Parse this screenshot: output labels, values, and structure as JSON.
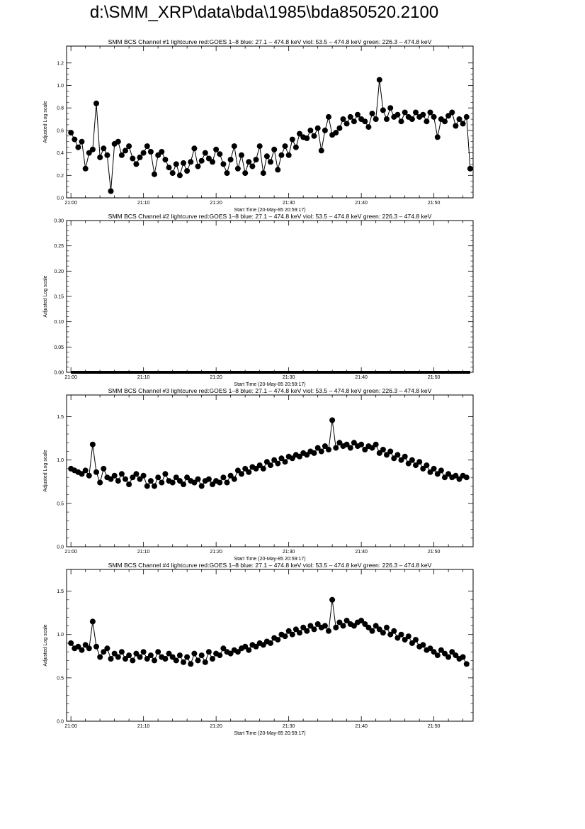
{
  "page": {
    "title": "d:\\SMM_XRP\\data\\bda\\1985\\bda850520.2100"
  },
  "chart_data": [
    {
      "type": "line",
      "title": "SMM BCS Channel #1 lightcurve  red:GOES 1–8  blue: 27.1 – 474.8 keV  viol: 53.5 – 474.8 keV  green: 226.3 – 474.8 keV",
      "xlabel": "Start Time (20-May-85 20:59:17)",
      "ylabel": "Adjusted Log scale",
      "xticks": [
        "21:00",
        "21:10",
        "21:20",
        "21:30",
        "21:40",
        "21:50"
      ],
      "yticks": [
        "0.0",
        "0.2",
        "0.4",
        "0.6",
        "0.8",
        "1.0",
        "1.2"
      ],
      "xlim": [
        -0.6,
        55.4
      ],
      "ylim": [
        0,
        1.35
      ],
      "x_unit": "minutes after 21:00",
      "x": [
        0.0,
        0.5,
        1.0,
        1.5,
        2.0,
        2.5,
        3.0,
        3.5,
        4.0,
        4.5,
        5.0,
        5.5,
        6.0,
        6.5,
        7.0,
        7.5,
        8.0,
        8.5,
        9.0,
        9.5,
        10.0,
        10.5,
        11.0,
        11.5,
        12.0,
        12.5,
        13.0,
        13.5,
        14.0,
        14.5,
        15.0,
        15.5,
        16.0,
        16.5,
        17.0,
        17.5,
        18.0,
        18.5,
        19.0,
        19.5,
        20.0,
        20.5,
        21.0,
        21.5,
        22.0,
        22.5,
        23.0,
        23.5,
        24.0,
        24.5,
        25.0,
        25.5,
        26.0,
        26.5,
        27.0,
        27.5,
        28.0,
        28.5,
        29.0,
        29.5,
        30.0,
        30.5,
        31.0,
        31.5,
        32.0,
        32.5,
        33.0,
        33.5,
        34.0,
        34.5,
        35.0,
        35.5,
        36.0,
        36.5,
        37.0,
        37.5,
        38.0,
        38.5,
        39.0,
        39.5,
        40.0,
        40.5,
        41.0,
        41.5,
        42.0,
        42.5,
        43.0,
        43.5,
        44.0,
        44.5,
        45.0,
        45.5,
        46.0,
        46.5,
        47.0,
        47.5,
        48.0,
        48.5,
        49.0,
        49.5,
        50.0,
        50.5,
        51.0,
        51.5,
        52.0,
        52.5,
        53.0,
        53.5,
        54.0,
        54.5
      ],
      "values": [
        0.58,
        0.52,
        0.45,
        0.5,
        0.26,
        0.4,
        0.43,
        0.84,
        0.36,
        0.44,
        0.38,
        0.06,
        0.48,
        0.5,
        0.38,
        0.42,
        0.46,
        0.35,
        0.3,
        0.36,
        0.4,
        0.46,
        0.41,
        0.21,
        0.38,
        0.41,
        0.34,
        0.27,
        0.22,
        0.3,
        0.2,
        0.31,
        0.24,
        0.32,
        0.44,
        0.28,
        0.33,
        0.4,
        0.35,
        0.32,
        0.43,
        0.39,
        0.3,
        0.22,
        0.34,
        0.46,
        0.26,
        0.38,
        0.22,
        0.32,
        0.28,
        0.34,
        0.46,
        0.22,
        0.37,
        0.32,
        0.43,
        0.25,
        0.38,
        0.46,
        0.38,
        0.52,
        0.45,
        0.57,
        0.54,
        0.53,
        0.6,
        0.55,
        0.62,
        0.42,
        0.6,
        0.72,
        0.56,
        0.58,
        0.62,
        0.7,
        0.66,
        0.72,
        0.68,
        0.74,
        0.7,
        0.68,
        0.63,
        0.75,
        0.7,
        1.05,
        0.78,
        0.7,
        0.8,
        0.72,
        0.74,
        0.68,
        0.76,
        0.72,
        0.7,
        0.76,
        0.72,
        0.74,
        0.68,
        0.76,
        0.72,
        0.54,
        0.7,
        0.68,
        0.73,
        0.76,
        0.64,
        0.7,
        0.66,
        0.72
      ],
      "extra_points": [
        {
          "x": 55.0,
          "y": 0.26
        }
      ]
    },
    {
      "type": "line",
      "title": "SMM BCS Channel #2 lightcurve  red:GOES 1–8  blue: 27.1 – 474.8 keV  viol: 53.5 – 474.8 keV  green: 226.3 – 474.8 keV",
      "xlabel": "Start Time (20-May-85 20:59:17)",
      "ylabel": "Adjusted Log scale",
      "xticks": [
        "21:00",
        "21:10",
        "21:20",
        "21:30",
        "21:40",
        "21:50"
      ],
      "yticks": [
        "0.00",
        "0.05",
        "0.10",
        "0.15",
        "0.20",
        "0.25",
        "0.30"
      ],
      "xlim": [
        -0.6,
        55.4
      ],
      "ylim": [
        0,
        0.3
      ],
      "x_unit": "minutes after 21:00",
      "flat_value": 0.0,
      "x_range": [
        0.0,
        55.0
      ]
    },
    {
      "type": "line",
      "title": "SMM BCS Channel #3 lightcurve  red:GOES 1–8  blue: 27.1 – 474.8 keV  viol: 53.5 – 474.8 keV  green: 226.3 – 474.8 keV",
      "xlabel": "Start Time (20-May-85 20:59:17)",
      "ylabel": "Adjusted Log scale",
      "xticks": [
        "21:00",
        "21:10",
        "21:20",
        "21:30",
        "21:40",
        "21:50"
      ],
      "yticks": [
        "0.0",
        "0.5",
        "1.0",
        "1.5"
      ],
      "xlim": [
        -0.6,
        55.4
      ],
      "ylim": [
        0,
        1.75
      ],
      "x_unit": "minutes after 21:00",
      "x": [
        0.0,
        0.5,
        1.0,
        1.5,
        2.0,
        2.5,
        3.0,
        3.5,
        4.0,
        4.5,
        5.0,
        5.5,
        6.0,
        6.5,
        7.0,
        7.5,
        8.0,
        8.5,
        9.0,
        9.5,
        10.0,
        10.5,
        11.0,
        11.5,
        12.0,
        12.5,
        13.0,
        13.5,
        14.0,
        14.5,
        15.0,
        15.5,
        16.0,
        16.5,
        17.0,
        17.5,
        18.0,
        18.5,
        19.0,
        19.5,
        20.0,
        20.5,
        21.0,
        21.5,
        22.0,
        22.5,
        23.0,
        23.5,
        24.0,
        24.5,
        25.0,
        25.5,
        26.0,
        26.5,
        27.0,
        27.5,
        28.0,
        28.5,
        29.0,
        29.5,
        30.0,
        30.5,
        31.0,
        31.5,
        32.0,
        32.5,
        33.0,
        33.5,
        34.0,
        34.5,
        35.0,
        35.5,
        36.0,
        36.5,
        37.0,
        37.5,
        38.0,
        38.5,
        39.0,
        39.5,
        40.0,
        40.5,
        41.0,
        41.5,
        42.0,
        42.5,
        43.0,
        43.5,
        44.0,
        44.5,
        45.0,
        45.5,
        46.0,
        46.5,
        47.0,
        47.5,
        48.0,
        48.5,
        49.0,
        49.5,
        50.0,
        50.5,
        51.0,
        51.5,
        52.0,
        52.5,
        53.0,
        53.5,
        54.0,
        54.5
      ],
      "values": [
        0.9,
        0.88,
        0.86,
        0.84,
        0.88,
        0.82,
        1.18,
        0.86,
        0.74,
        0.9,
        0.8,
        0.78,
        0.82,
        0.76,
        0.84,
        0.78,
        0.72,
        0.8,
        0.84,
        0.78,
        0.82,
        0.7,
        0.76,
        0.7,
        0.8,
        0.74,
        0.84,
        0.76,
        0.74,
        0.8,
        0.76,
        0.72,
        0.8,
        0.76,
        0.74,
        0.78,
        0.7,
        0.76,
        0.78,
        0.72,
        0.76,
        0.74,
        0.8,
        0.74,
        0.82,
        0.78,
        0.88,
        0.84,
        0.9,
        0.86,
        0.92,
        0.9,
        0.94,
        0.9,
        0.98,
        0.94,
        1.0,
        0.96,
        1.02,
        0.98,
        1.04,
        1.02,
        1.06,
        1.04,
        1.08,
        1.06,
        1.1,
        1.08,
        1.14,
        1.1,
        1.16,
        1.12,
        1.46,
        1.14,
        1.2,
        1.16,
        1.18,
        1.14,
        1.2,
        1.16,
        1.18,
        1.12,
        1.16,
        1.14,
        1.18,
        1.08,
        1.12,
        1.06,
        1.1,
        1.02,
        1.06,
        1.0,
        1.04,
        0.96,
        1.0,
        0.94,
        0.98,
        0.9,
        0.94,
        0.86,
        0.9,
        0.84,
        0.88,
        0.8,
        0.84,
        0.8,
        0.82,
        0.78,
        0.82,
        0.8
      ]
    },
    {
      "type": "line",
      "title": "SMM BCS Channel #4 lightcurve  red:GOES 1–8  blue: 27.1 – 474.8 keV  viol: 53.5 – 474.8 keV  green: 226.3 – 474.8 keV",
      "xlabel": "Start Time (20-May-85 20:59:17)",
      "ylabel": "Adjusted Log scale",
      "xticks": [
        "21:00",
        "21:10",
        "21:20",
        "21:30",
        "21:40",
        "21:50"
      ],
      "yticks": [
        "0.0",
        "0.5",
        "1.0",
        "1.5"
      ],
      "xlim": [
        -0.6,
        55.4
      ],
      "ylim": [
        0,
        1.75
      ],
      "x_unit": "minutes after 21:00",
      "x": [
        0.0,
        0.5,
        1.0,
        1.5,
        2.0,
        2.5,
        3.0,
        3.5,
        4.0,
        4.5,
        5.0,
        5.5,
        6.0,
        6.5,
        7.0,
        7.5,
        8.0,
        8.5,
        9.0,
        9.5,
        10.0,
        10.5,
        11.0,
        11.5,
        12.0,
        12.5,
        13.0,
        13.5,
        14.0,
        14.5,
        15.0,
        15.5,
        16.0,
        16.5,
        17.0,
        17.5,
        18.0,
        18.5,
        19.0,
        19.5,
        20.0,
        20.5,
        21.0,
        21.5,
        22.0,
        22.5,
        23.0,
        23.5,
        24.0,
        24.5,
        25.0,
        25.5,
        26.0,
        26.5,
        27.0,
        27.5,
        28.0,
        28.5,
        29.0,
        29.5,
        30.0,
        30.5,
        31.0,
        31.5,
        32.0,
        32.5,
        33.0,
        33.5,
        34.0,
        34.5,
        35.0,
        35.5,
        36.0,
        36.5,
        37.0,
        37.5,
        38.0,
        38.5,
        39.0,
        39.5,
        40.0,
        40.5,
        41.0,
        41.5,
        42.0,
        42.5,
        43.0,
        43.5,
        44.0,
        44.5,
        45.0,
        45.5,
        46.0,
        46.5,
        47.0,
        47.5,
        48.0,
        48.5,
        49.0,
        49.5,
        50.0,
        50.5,
        51.0,
        51.5,
        52.0,
        52.5,
        53.0,
        53.5,
        54.0,
        54.5
      ],
      "values": [
        0.9,
        0.84,
        0.86,
        0.82,
        0.88,
        0.84,
        1.15,
        0.86,
        0.74,
        0.8,
        0.84,
        0.72,
        0.78,
        0.74,
        0.8,
        0.72,
        0.76,
        0.7,
        0.78,
        0.74,
        0.8,
        0.72,
        0.76,
        0.7,
        0.8,
        0.74,
        0.72,
        0.78,
        0.74,
        0.7,
        0.76,
        0.68,
        0.74,
        0.66,
        0.78,
        0.7,
        0.76,
        0.68,
        0.8,
        0.72,
        0.78,
        0.76,
        0.84,
        0.8,
        0.78,
        0.82,
        0.8,
        0.84,
        0.86,
        0.82,
        0.88,
        0.86,
        0.9,
        0.88,
        0.92,
        0.9,
        0.96,
        0.94,
        1.0,
        0.98,
        1.04,
        1.0,
        1.06,
        1.02,
        1.08,
        1.04,
        1.1,
        1.06,
        1.12,
        1.08,
        1.1,
        1.04,
        1.4,
        1.08,
        1.14,
        1.1,
        1.16,
        1.12,
        1.1,
        1.14,
        1.16,
        1.12,
        1.08,
        1.04,
        1.1,
        1.06,
        1.02,
        1.08,
        1.0,
        1.04,
        0.96,
        1.0,
        0.94,
        0.98,
        0.9,
        0.94,
        0.86,
        0.88,
        0.82,
        0.84,
        0.8,
        0.76,
        0.82,
        0.78,
        0.74,
        0.8,
        0.76,
        0.72,
        0.74,
        0.66
      ]
    }
  ]
}
